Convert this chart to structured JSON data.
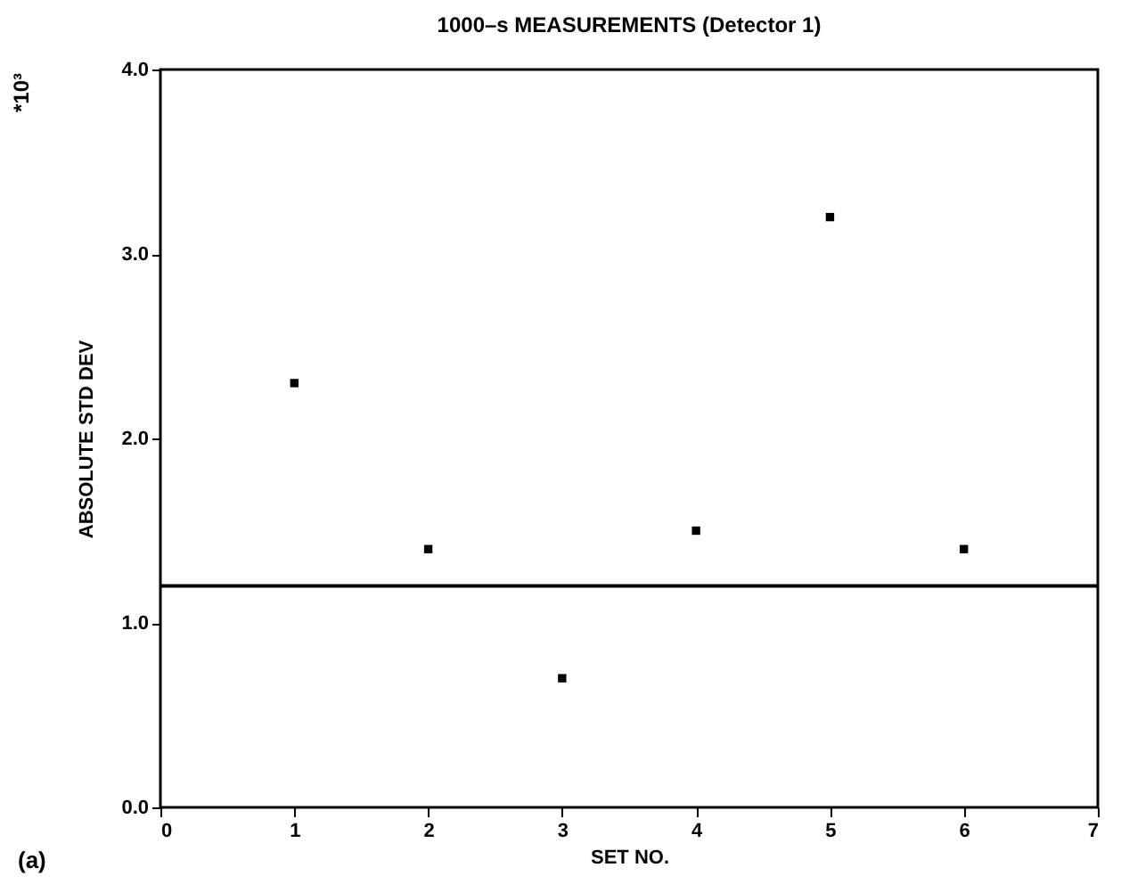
{
  "chart_data": {
    "type": "scatter",
    "title": "1000–s MEASUREMENTS  (Detector 1)",
    "xlabel": "SET NO.",
    "ylabel": "ABSOLUTE STD DEV",
    "annotations": [
      "*10³",
      "(a)"
    ],
    "x": [
      1,
      2,
      3,
      4,
      5,
      6
    ],
    "series": [
      {
        "color": "#000000",
        "values": [
          2.3,
          1.4,
          0.7,
          1.5,
          3.2,
          1.4
        ]
      }
    ],
    "xlim": [
      0,
      7
    ],
    "xticks": [
      0,
      1,
      2,
      3,
      4,
      5,
      6,
      7
    ],
    "ylim": [
      0,
      4
    ],
    "yticks": [
      {
        "value": 0,
        "label": "0.0"
      },
      {
        "value": 1,
        "label": "1.0"
      },
      {
        "value": 2,
        "label": "2.0"
      },
      {
        "value": 3,
        "label": "3.0"
      },
      {
        "value": 4,
        "label": "4.0"
      }
    ],
    "ref_lines": [
      {
        "axis": "y",
        "value": 1.2,
        "color": "#000000"
      }
    ],
    "marker": "square",
    "grid": false
  }
}
